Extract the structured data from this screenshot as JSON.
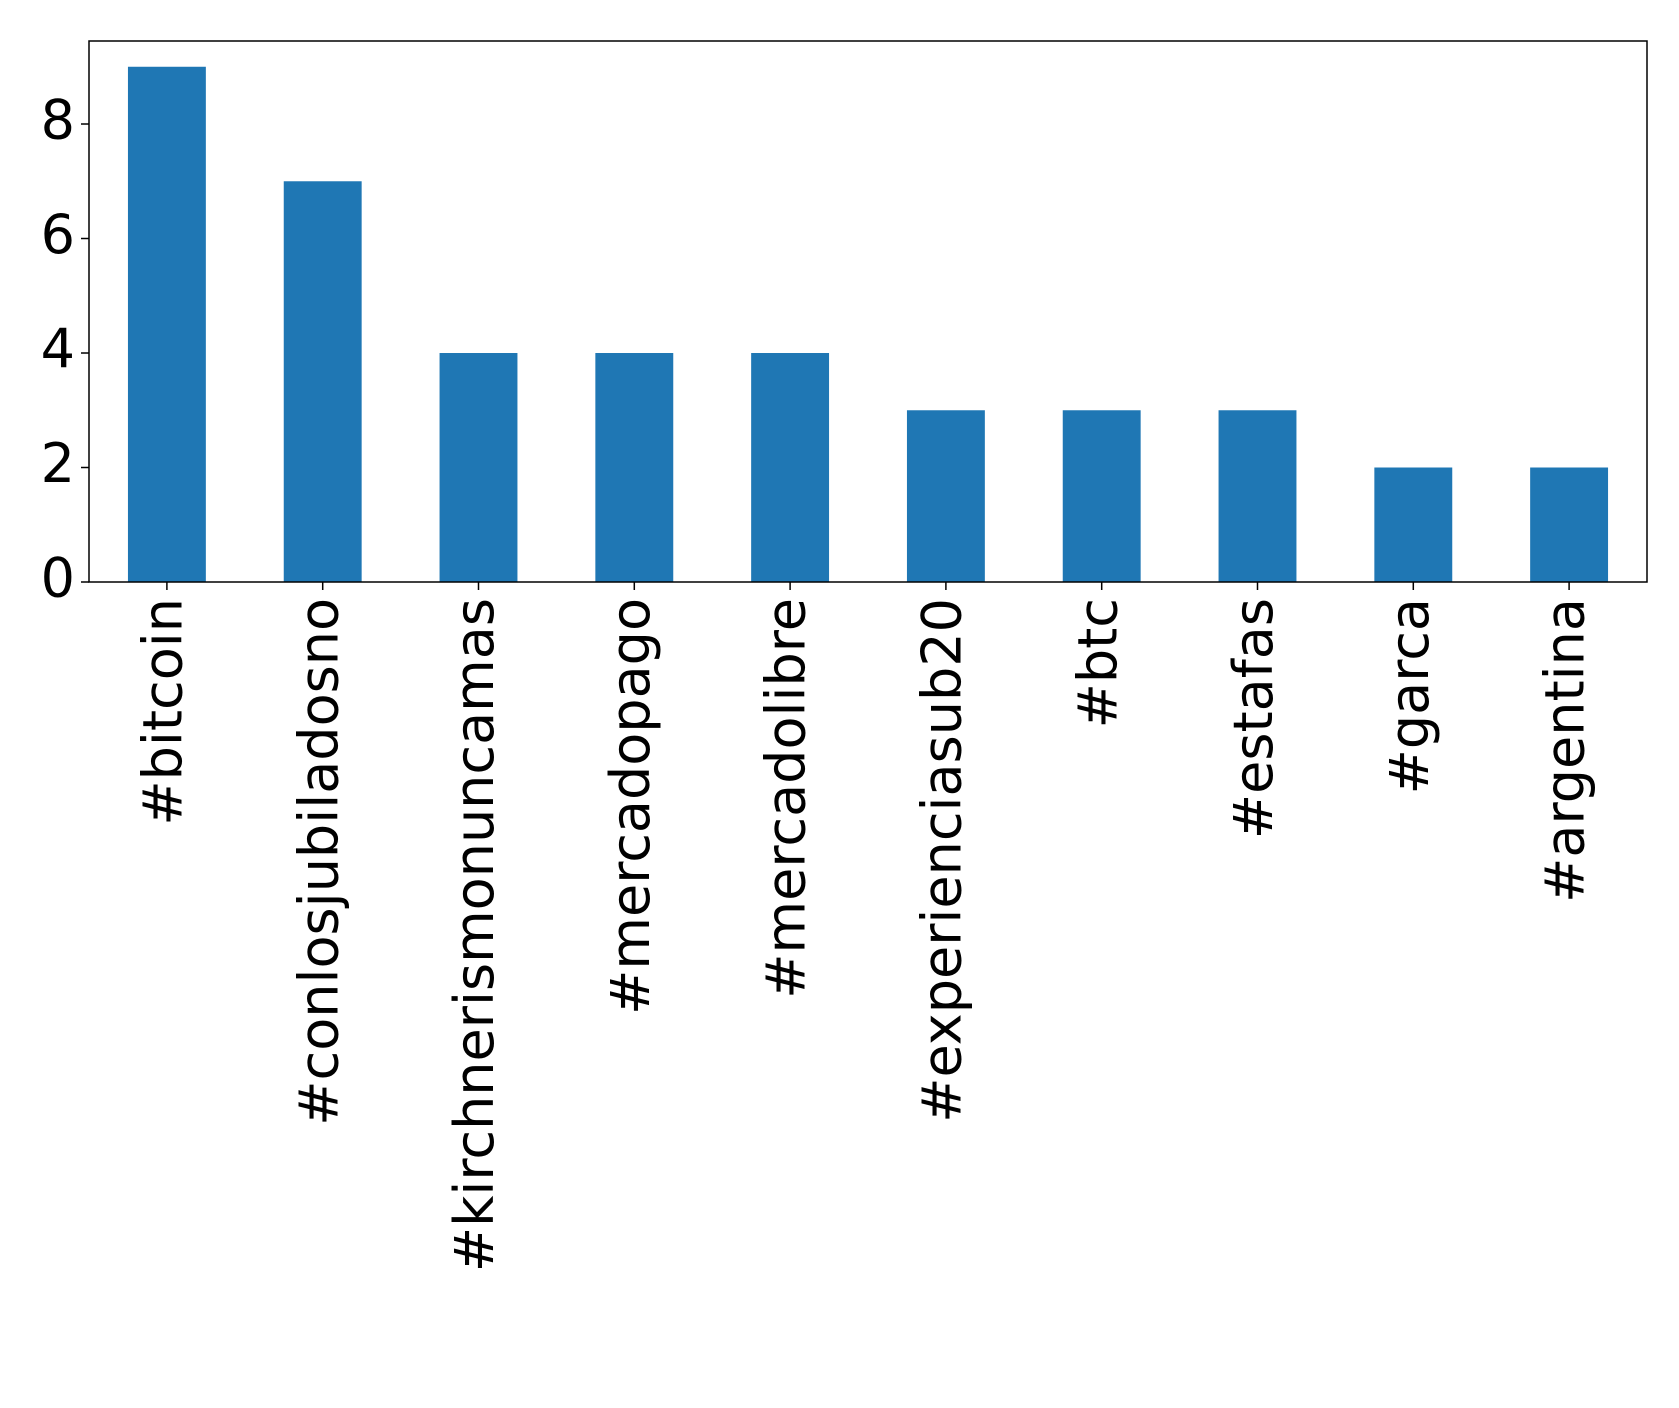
{
  "chart_data": {
    "type": "bar",
    "categories": [
      "#bitcoin",
      "#conlosjubiladosno",
      "#kirchnerismonuncamas",
      "#mercadopago",
      "#mercadolibre",
      "#experienciasub20",
      "#btc",
      "#estafas",
      "#garca",
      "#argentina"
    ],
    "values": [
      9,
      7,
      4,
      4,
      4,
      3,
      3,
      3,
      2,
      2
    ],
    "color": "#1f77b4",
    "ylim": [
      0,
      9.45
    ],
    "yticks": [
      0,
      2,
      4,
      6,
      8
    ],
    "grid": false
  }
}
